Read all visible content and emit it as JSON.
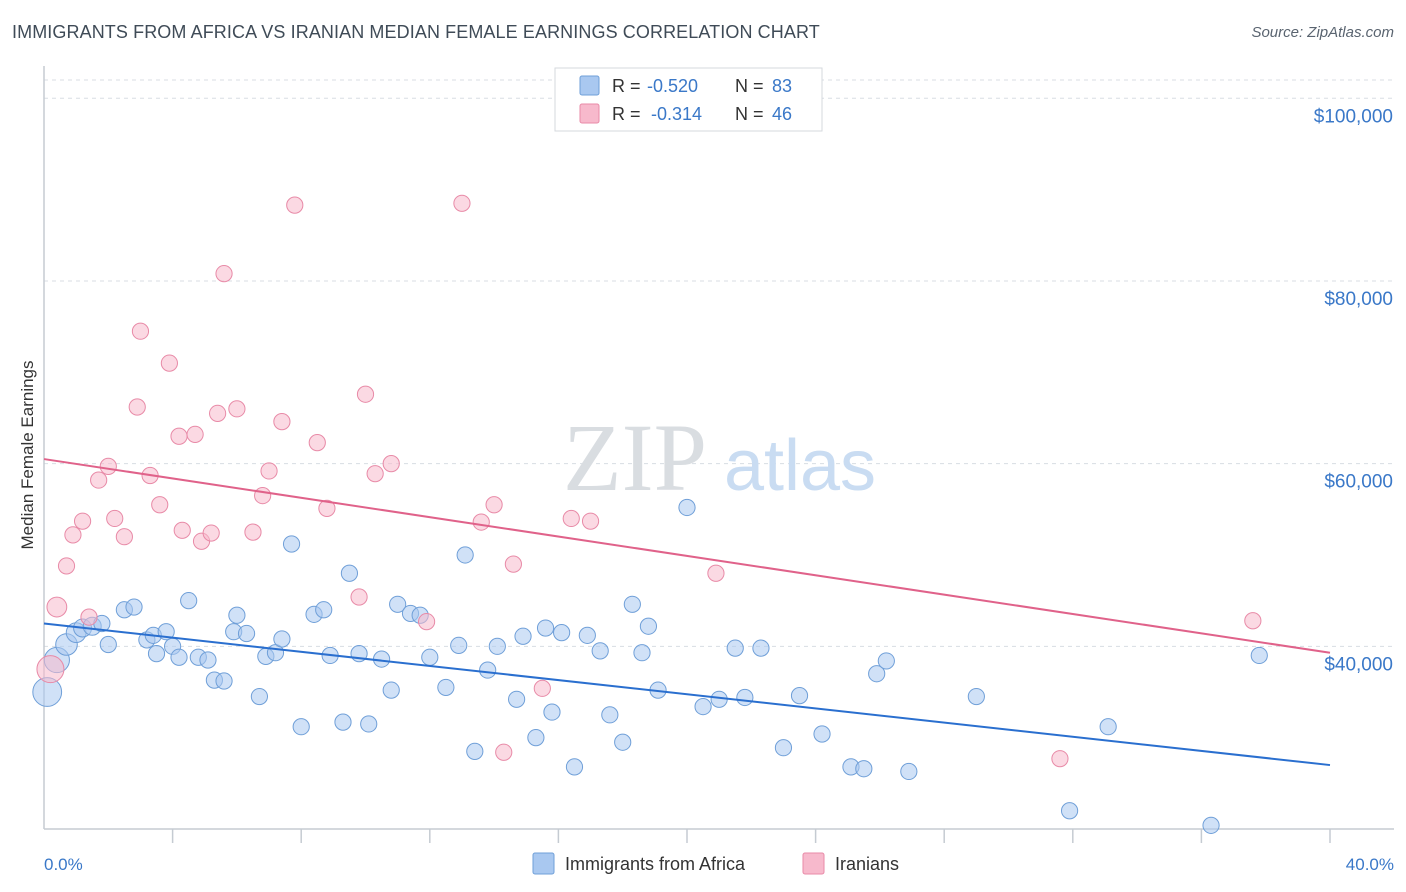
{
  "header": {
    "title": "IMMIGRANTS FROM AFRICA VS IRANIAN MEDIAN FEMALE EARNINGS CORRELATION CHART",
    "source": "Source: ZipAtlas.com"
  },
  "watermark": {
    "zip": "ZIP",
    "atlas": "atlas"
  },
  "colors": {
    "africa_fill": "#a9c8f0",
    "africa_stroke": "#6f9fd8",
    "africa_line": "#2a6fcf",
    "iranians_fill": "#f7b9cc",
    "iranians_stroke": "#e88aa7",
    "iranians_line": "#e0628a",
    "axis_text": "#3a78c8",
    "grid": "#d8dde3"
  },
  "chart_data": {
    "type": "scatter",
    "title": "IMMIGRANTS FROM AFRICA VS IRANIAN MEDIAN FEMALE EARNINGS CORRELATION CHART",
    "xlabel": "",
    "ylabel": "Median Female Earnings",
    "xlim": [
      0,
      40
    ],
    "ylim": [
      20000,
      102000
    ],
    "x_tick_labels": [
      "0.0%",
      "40.0%"
    ],
    "y_ticks": [
      40000,
      60000,
      80000,
      100000
    ],
    "y_tick_labels": [
      "$40,000",
      "$60,000",
      "$80,000",
      "$100,000"
    ],
    "grid": true,
    "legend_position": "top-center",
    "stats": [
      {
        "r_label": "R =",
        "r_value": "-0.520",
        "n_label": "N =",
        "n_value": "83"
      },
      {
        "r_label": "R =",
        "r_value": "-0.314",
        "n_label": "N =",
        "n_value": "46"
      }
    ],
    "series": [
      {
        "name": "Immigrants from Africa",
        "trend": {
          "x": [
            0,
            40
          ],
          "y": [
            42500,
            27000
          ]
        },
        "points": [
          [
            0.1,
            35000,
            1.6
          ],
          [
            0.4,
            38500,
            1.4
          ],
          [
            0.7,
            40200,
            1.2
          ],
          [
            1.0,
            41500,
            1.1
          ],
          [
            1.2,
            42000,
            1.0
          ],
          [
            1.5,
            42200,
            1.0
          ],
          [
            1.8,
            42500,
            0.9
          ],
          [
            2.0,
            40200,
            0.9
          ],
          [
            2.5,
            44000,
            0.9
          ],
          [
            2.8,
            44300,
            0.9
          ],
          [
            3.2,
            40700,
            0.9
          ],
          [
            3.4,
            41200,
            0.9
          ],
          [
            3.5,
            39200,
            0.9
          ],
          [
            3.8,
            41600,
            0.9
          ],
          [
            4.0,
            40000,
            0.9
          ],
          [
            4.2,
            38800,
            0.9
          ],
          [
            4.5,
            45000,
            0.9
          ],
          [
            4.8,
            38800,
            0.9
          ],
          [
            5.1,
            38500,
            0.9
          ],
          [
            5.3,
            36300,
            0.9
          ],
          [
            5.6,
            36200,
            0.9
          ],
          [
            5.9,
            41600,
            0.9
          ],
          [
            6.0,
            43400,
            0.9
          ],
          [
            6.3,
            41400,
            0.9
          ],
          [
            6.7,
            34500,
            0.9
          ],
          [
            6.9,
            38900,
            0.9
          ],
          [
            7.2,
            39300,
            0.9
          ],
          [
            7.4,
            40800,
            0.9
          ],
          [
            7.7,
            51200,
            0.9
          ],
          [
            8.0,
            31200,
            0.9
          ],
          [
            8.4,
            43500,
            0.9
          ],
          [
            8.7,
            44000,
            0.9
          ],
          [
            8.9,
            39000,
            0.9
          ],
          [
            9.3,
            31700,
            0.9
          ],
          [
            9.5,
            48000,
            0.9
          ],
          [
            9.8,
            39200,
            0.9
          ],
          [
            10.1,
            31500,
            0.9
          ],
          [
            10.5,
            38600,
            0.9
          ],
          [
            10.8,
            35200,
            0.9
          ],
          [
            11.0,
            44600,
            0.9
          ],
          [
            11.4,
            43600,
            0.9
          ],
          [
            11.7,
            43400,
            0.9
          ],
          [
            12.0,
            38800,
            0.9
          ],
          [
            12.5,
            35500,
            0.9
          ],
          [
            12.9,
            40100,
            0.9
          ],
          [
            13.1,
            50000,
            0.9
          ],
          [
            13.4,
            28500,
            0.9
          ],
          [
            13.8,
            37400,
            0.9
          ],
          [
            14.1,
            40000,
            0.9
          ],
          [
            14.7,
            34200,
            0.9
          ],
          [
            14.9,
            41100,
            0.9
          ],
          [
            15.3,
            30000,
            0.9
          ],
          [
            15.6,
            42000,
            0.9
          ],
          [
            15.8,
            32800,
            0.9
          ],
          [
            16.1,
            41500,
            0.9
          ],
          [
            16.5,
            26800,
            0.9
          ],
          [
            16.9,
            41200,
            0.9
          ],
          [
            17.3,
            39500,
            0.9
          ],
          [
            17.6,
            32500,
            0.9
          ],
          [
            18.0,
            29500,
            0.9
          ],
          [
            18.3,
            44600,
            0.9
          ],
          [
            18.6,
            39300,
            0.9
          ],
          [
            18.8,
            42200,
            0.9
          ],
          [
            19.1,
            35200,
            0.9
          ],
          [
            20.0,
            55200,
            0.9
          ],
          [
            20.5,
            33400,
            0.9
          ],
          [
            21.0,
            34200,
            0.9
          ],
          [
            21.5,
            39800,
            0.9
          ],
          [
            21.8,
            34400,
            0.9
          ],
          [
            22.3,
            39800,
            0.9
          ],
          [
            23.0,
            28900,
            0.9
          ],
          [
            23.5,
            34600,
            0.9
          ],
          [
            24.2,
            30400,
            0.9
          ],
          [
            25.1,
            26800,
            0.9
          ],
          [
            25.5,
            26600,
            0.9
          ],
          [
            25.9,
            37000,
            0.9
          ],
          [
            26.2,
            38400,
            0.9
          ],
          [
            26.9,
            26300,
            0.9
          ],
          [
            29.0,
            34500,
            0.9
          ],
          [
            31.9,
            22000,
            0.9
          ],
          [
            33.1,
            31200,
            0.9
          ],
          [
            36.3,
            20400,
            0.9
          ],
          [
            37.8,
            39000,
            0.9
          ]
        ]
      },
      {
        "name": "Iranians",
        "trend": {
          "x": [
            0,
            40
          ],
          "y": [
            60500,
            39300
          ]
        },
        "points": [
          [
            0.2,
            37500,
            1.5
          ],
          [
            0.4,
            44300,
            1.1
          ],
          [
            0.7,
            48800,
            0.9
          ],
          [
            0.9,
            52200,
            0.9
          ],
          [
            1.2,
            53700,
            0.9
          ],
          [
            1.4,
            43200,
            0.9
          ],
          [
            1.7,
            58200,
            0.9
          ],
          [
            2.0,
            59700,
            0.9
          ],
          [
            2.2,
            54000,
            0.9
          ],
          [
            2.5,
            52000,
            0.9
          ],
          [
            2.9,
            66200,
            0.9
          ],
          [
            3.0,
            74500,
            0.9
          ],
          [
            3.3,
            58700,
            0.9
          ],
          [
            3.6,
            55500,
            0.9
          ],
          [
            3.9,
            71000,
            0.9
          ],
          [
            4.2,
            63000,
            0.9
          ],
          [
            4.3,
            52700,
            0.9
          ],
          [
            4.7,
            63200,
            0.9
          ],
          [
            4.9,
            51500,
            0.9
          ],
          [
            5.2,
            52400,
            0.9
          ],
          [
            5.4,
            65500,
            0.9
          ],
          [
            5.6,
            80800,
            0.9
          ],
          [
            6.0,
            66000,
            0.9
          ],
          [
            6.5,
            52500,
            0.9
          ],
          [
            6.8,
            56500,
            0.9
          ],
          [
            7.0,
            59200,
            0.9
          ],
          [
            7.4,
            64600,
            0.9
          ],
          [
            7.8,
            88300,
            0.9
          ],
          [
            8.5,
            62300,
            0.9
          ],
          [
            8.8,
            55100,
            0.9
          ],
          [
            9.8,
            45400,
            0.9
          ],
          [
            10.0,
            67600,
            0.9
          ],
          [
            10.3,
            58900,
            0.9
          ],
          [
            10.8,
            60000,
            0.9
          ],
          [
            11.9,
            42700,
            0.9
          ],
          [
            13.0,
            88500,
            0.9
          ],
          [
            13.6,
            53600,
            0.9
          ],
          [
            14.0,
            55500,
            0.9
          ],
          [
            14.3,
            28400,
            0.9
          ],
          [
            14.6,
            49000,
            0.9
          ],
          [
            15.5,
            35400,
            0.9
          ],
          [
            16.4,
            54000,
            0.9
          ],
          [
            17.0,
            53700,
            0.9
          ],
          [
            20.9,
            48000,
            0.9
          ],
          [
            31.6,
            27700,
            0.9
          ],
          [
            37.6,
            42800,
            0.9
          ]
        ]
      }
    ]
  }
}
